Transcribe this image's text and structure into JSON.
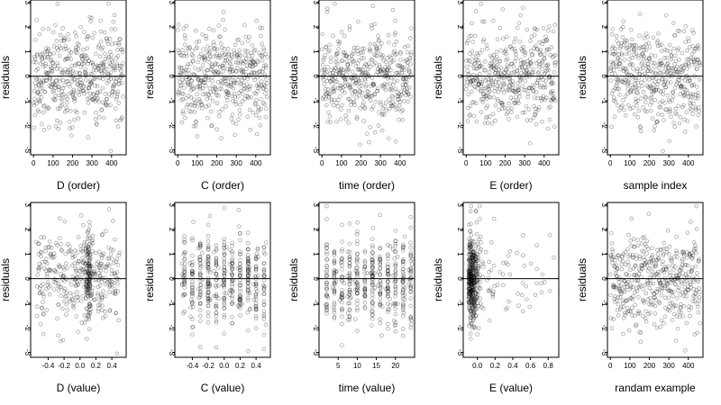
{
  "figure": {
    "colors": {
      "background": "#ffffff",
      "points": "#000000",
      "zero_line": "#000000"
    },
    "marker": "open-circle"
  },
  "chart_data": [
    {
      "type": "scatter",
      "xlabel": "D (order)",
      "ylabel": "residuals",
      "xlim": [
        -15,
        475
      ],
      "ylim": [
        -3.2,
        3.1
      ],
      "xticks": [
        0,
        100,
        200,
        300,
        400
      ],
      "yticks": [
        -3,
        -2,
        -1,
        0,
        1,
        2,
        3
      ],
      "xtick_labels": [
        "0",
        "100",
        "200",
        "300",
        "400"
      ],
      "ytick_labels": [
        "-3",
        "-2",
        "-1",
        "0",
        "1",
        "2",
        "3"
      ],
      "zero_line": 0,
      "n_points": 460,
      "seed": 11,
      "pattern": "index-scatter"
    },
    {
      "type": "scatter",
      "xlabel": "C (order)",
      "ylabel": "residuals",
      "xlim": [
        -15,
        475
      ],
      "ylim": [
        -3.2,
        3.1
      ],
      "xticks": [
        0,
        100,
        200,
        300,
        400
      ],
      "yticks": [
        -3,
        -2,
        -1,
        0,
        1,
        2,
        3
      ],
      "xtick_labels": [
        "0",
        "100",
        "200",
        "300",
        "400"
      ],
      "ytick_labels": [
        "-3",
        "-2",
        "-1",
        "0",
        "1",
        "2",
        "3"
      ],
      "zero_line": 0,
      "n_points": 460,
      "seed": 23,
      "pattern": "index-scatter"
    },
    {
      "type": "scatter",
      "xlabel": "time (order)",
      "ylabel": "residuals",
      "xlim": [
        -15,
        475
      ],
      "ylim": [
        -3.2,
        3.1
      ],
      "xticks": [
        0,
        100,
        200,
        300,
        400
      ],
      "yticks": [
        -3,
        -2,
        -1,
        0,
        1,
        2,
        3
      ],
      "xtick_labels": [
        "0",
        "100",
        "200",
        "300",
        "400"
      ],
      "ytick_labels": [
        "-3",
        "-2",
        "-1",
        "0",
        "1",
        "2",
        "3"
      ],
      "zero_line": 0,
      "n_points": 460,
      "seed": 37,
      "pattern": "index-scatter"
    },
    {
      "type": "scatter",
      "xlabel": "E (order)",
      "ylabel": "residuals",
      "xlim": [
        -15,
        475
      ],
      "ylim": [
        -3.2,
        3.1
      ],
      "xticks": [
        0,
        100,
        200,
        300,
        400
      ],
      "yticks": [
        -3,
        -2,
        -1,
        0,
        1,
        2,
        3
      ],
      "xtick_labels": [
        "0",
        "100",
        "200",
        "300",
        "400"
      ],
      "ytick_labels": [
        "-3",
        "-2",
        "-1",
        "0",
        "1",
        "2",
        "3"
      ],
      "zero_line": 0,
      "n_points": 460,
      "seed": 41,
      "pattern": "index-scatter"
    },
    {
      "type": "scatter",
      "xlabel": "sample index",
      "ylabel": "residuals",
      "xlim": [
        -15,
        475
      ],
      "ylim": [
        -3.2,
        3.1
      ],
      "xticks": [
        0,
        100,
        200,
        300,
        400
      ],
      "yticks": [
        -3,
        -2,
        -1,
        0,
        1,
        2,
        3
      ],
      "xtick_labels": [
        "0",
        "100",
        "200",
        "300",
        "400"
      ],
      "ytick_labels": [
        "-3",
        "-2",
        "-1",
        "0",
        "1",
        "2",
        "3"
      ],
      "zero_line": 0,
      "n_points": 460,
      "seed": 53,
      "pattern": "index-scatter"
    },
    {
      "type": "scatter",
      "xlabel": "D (value)",
      "ylabel": "residuals",
      "xlim": [
        -0.62,
        0.58
      ],
      "ylim": [
        -3.2,
        3.1
      ],
      "xticks": [
        -0.4,
        -0.2,
        0.0,
        0.2,
        0.4
      ],
      "yticks": [
        -3,
        -2,
        -1,
        0,
        1,
        2,
        3
      ],
      "xtick_labels": [
        "-0.4",
        "-0.2",
        "0.0",
        "0.2",
        "0.4"
      ],
      "ytick_labels": [
        "-3",
        "-2",
        "-1",
        "0",
        "1",
        "2",
        "3"
      ],
      "zero_line": 0,
      "n_points": 460,
      "seed": 61,
      "pattern": "value-scatter",
      "x_range": [
        -0.55,
        0.5
      ]
    },
    {
      "type": "scatter",
      "xlabel": "C (value)",
      "ylabel": "residuals",
      "xlim": [
        -0.62,
        0.58
      ],
      "ylim": [
        -3.2,
        3.1
      ],
      "xticks": [
        -0.4,
        -0.2,
        0.0,
        0.2,
        0.4
      ],
      "yticks": [
        -3,
        -2,
        -1,
        0,
        1,
        2,
        3
      ],
      "xtick_labels": [
        "-0.4",
        "-0.2",
        "0.0",
        "0.2",
        "0.4"
      ],
      "ytick_labels": [
        "-3",
        "-2",
        "-1",
        "0",
        "1",
        "2",
        "3"
      ],
      "zero_line": 0,
      "n_points": 460,
      "seed": 71,
      "pattern": "value-columns",
      "columns": [
        -0.5,
        -0.4,
        -0.3,
        -0.2,
        -0.1,
        0.0,
        0.1,
        0.2,
        0.3,
        0.4,
        0.5
      ]
    },
    {
      "type": "scatter",
      "xlabel": "time (value)",
      "ylabel": "residuals",
      "xlim": [
        0,
        25
      ],
      "ylim": [
        -3.2,
        3.1
      ],
      "xticks": [
        5,
        10,
        15,
        20
      ],
      "yticks": [
        -3,
        -2,
        -1,
        0,
        1,
        2,
        3
      ],
      "xtick_labels": [
        "5",
        "10",
        "15",
        "20"
      ],
      "ytick_labels": [
        "-3",
        "-2",
        "-1",
        "0",
        "1",
        "2",
        "3"
      ],
      "zero_line": 0,
      "n_points": 460,
      "seed": 83,
      "pattern": "value-columns",
      "columns": [
        2,
        4,
        6,
        8,
        10,
        12,
        14,
        16,
        18,
        20,
        22,
        24
      ]
    },
    {
      "type": "scatter",
      "xlabel": "E (value)",
      "ylabel": "residuals",
      "xlim": [
        -0.16,
        0.92
      ],
      "ylim": [
        -3.2,
        3.1
      ],
      "xticks": [
        0.0,
        0.2,
        0.4,
        0.6,
        0.8
      ],
      "yticks": [
        -3,
        -2,
        -1,
        0,
        1,
        2,
        3
      ],
      "xtick_labels": [
        "0.0",
        "0.2",
        "0.4",
        "0.6",
        "0.8"
      ],
      "ytick_labels": [
        "-3",
        "-2",
        "-1",
        "0",
        "1",
        "2",
        "3"
      ],
      "zero_line": 0,
      "n_points": 460,
      "seed": 97,
      "pattern": "skewed-x"
    },
    {
      "type": "scatter",
      "xlabel": "randam example",
      "ylabel": "residuals",
      "xlim": [
        -15,
        475
      ],
      "ylim": [
        -3.2,
        3.1
      ],
      "xticks": [
        0,
        100,
        200,
        300,
        400
      ],
      "yticks": [
        -3,
        -2,
        -1,
        0,
        1,
        2,
        3
      ],
      "xtick_labels": [
        "0",
        "100",
        "200",
        "300",
        "400"
      ],
      "ytick_labels": [
        "-3",
        "-2",
        "-1",
        "0",
        "1",
        "2",
        "3"
      ],
      "zero_line": 0,
      "n_points": 460,
      "seed": 101,
      "pattern": "index-random"
    }
  ]
}
